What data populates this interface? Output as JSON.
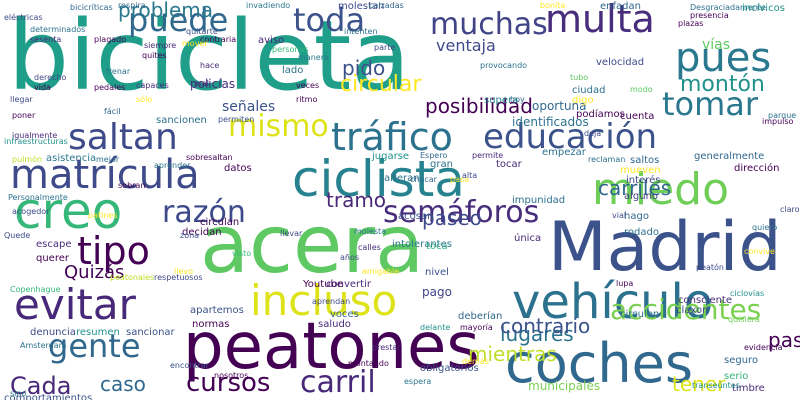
{
  "word_cloud": {
    "words": [
      "bicicleta",
      "acera",
      "Madrid",
      "peatones",
      "coches",
      "vehículo",
      "ciclista",
      "creo",
      "miedo",
      "matrícula",
      "evitar",
      "educación",
      "multa",
      "pues",
      "tráfico",
      "saltan",
      "puede",
      "toda",
      "incluso",
      "gente",
      "tipo",
      "tomar",
      "razón",
      "semáforos",
      "muchas",
      "carril",
      "accidentes",
      "cursos",
      "mismo",
      "Cada",
      "carriles",
      "pido",
      "circular",
      "montón",
      "tramo",
      "lugares",
      "contrario",
      "paseo",
      "problema",
      "caso",
      "tener",
      "Quizás",
      "mientras",
      "pasan",
      "posibilidad",
      "ventaja",
      "vías",
      "señales",
      "policías",
      "aviso",
      "molestan",
      "calzadas",
      "supera",
      "provocando",
      "oportuna",
      "identificados",
      "municipales",
      "infraestructuras",
      "comportamientos",
      "normas",
      "denuncia",
      "resumen",
      "sancionar",
      "obligatorios",
      "voces",
      "saludo",
      "deberían",
      "Youtube",
      "espera",
      "Espero",
      "timbre",
      "sino",
      "serio",
      "seguro",
      "quisiera",
      "transeúntes",
      "consciente",
      "circulen",
      "claxon",
      "pago",
      "nivel",
      "rodado",
      "hago",
      "alguno",
      "vial",
      "toca",
      "intolerantes",
      "delante",
      "mayoría",
      "convertir",
      "acosan",
      "impunidad",
      "única",
      "tocar",
      "alteran",
      "chocar",
      "mueven",
      "interés",
      "dirección",
      "generalmente",
      "saltos",
      "reclaman",
      "gran",
      "empezar",
      "jugarse",
      "permite",
      "aprender",
      "sobresaltan",
      "datos",
      "asistencia",
      "mejor",
      "pulmón",
      "igualmente",
      "poner",
      "sancionen",
      "permiten",
      "apartemos",
      "decidan",
      "circulan",
      "querer",
      "escape",
      "peatonales",
      "respetuosos",
      "años",
      "molesta",
      "calles",
      "visto",
      "amigable",
      "podíamos",
      "cuenta",
      "ciudad",
      "digo",
      "velocidad",
      "tubo",
      "modo",
      "plazas",
      "Desgraciadamente",
      "presencia",
      "incívicos",
      "enfadan",
      "respira",
      "bicicríticas",
      "invadiendo",
      "eléctricas",
      "determinados",
      "sesenta",
      "plagado",
      "contraria",
      "quitarte",
      "intenten",
      "parte",
      "siempre",
      "hace",
      "lado",
      "manera",
      "quites",
      "capaces",
      "sólo",
      "ritmo",
      "mal",
      "veces",
      "derecho",
      "vida",
      "aprendan",
      "llevo",
      "zona",
      "sobran",
      "acogedor",
      "Personalmente",
      "Copenhague",
      "Amsterdam",
      "encontrar",
      "nosotros",
      "Quede",
      "pasa",
      "impulso",
      "parque",
      "claro",
      "quiero",
      "peatón",
      "convive",
      "lupa",
      "patines",
      "llevar",
      "alta",
      "hoy",
      "demás",
      "prestar",
      "montando",
      "bonita",
      "ciclovías",
      "evidencia",
      "llegar",
      "fácil",
      "mover",
      "frenar",
      "pedales",
      "personas",
      "deja",
      "hemos",
      "entre",
      "cumplir",
      "ocurre"
    ]
  }
}
